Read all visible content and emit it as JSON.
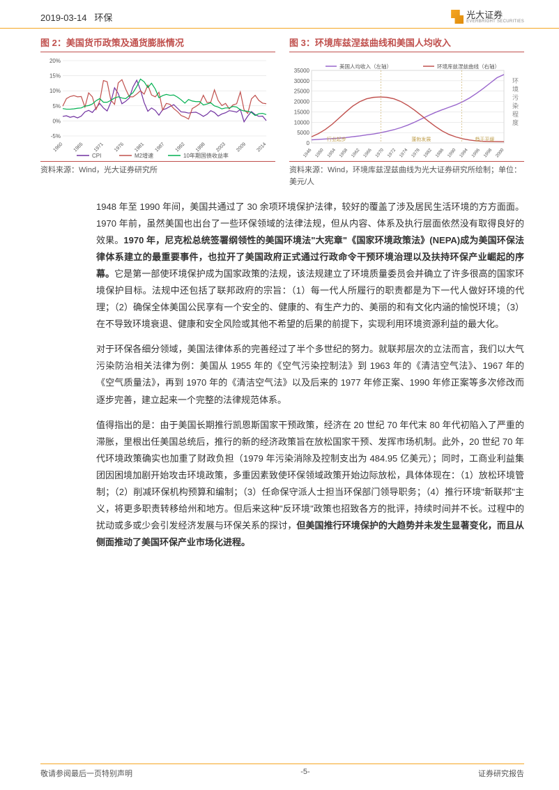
{
  "header": {
    "date": "2019-03-14",
    "category": "环保",
    "logo_cn": "光大证券",
    "logo_en": "EVERBRIGHT SECURITIES"
  },
  "chart2": {
    "title": "图 2：美国货币政策及通货膨胀情况",
    "type": "line",
    "source": "资料来源：Wind，光大证券研究所",
    "background_color": "#ffffff",
    "grid_color": "#d9d9d9",
    "ylim": [
      -5,
      20
    ],
    "ytick_step": 5,
    "ylabels": [
      "-5%",
      "0%",
      "5%",
      "10%",
      "15%",
      "20%"
    ],
    "xlabels": [
      "1960",
      "1965",
      "1971",
      "1976",
      "1981",
      "1987",
      "1992",
      "1998",
      "2003",
      "2009",
      "2014"
    ],
    "xlabel_fontsize": 7,
    "ylabel_fontsize": 8,
    "legend_fontsize": 8,
    "series": [
      {
        "name": "CPI",
        "color": "#7030a0",
        "line_width": 1.2,
        "values": [
          1.5,
          1.7,
          1.2,
          1.5,
          1.0,
          1.6,
          3.0,
          3.5,
          2.8,
          4.3,
          5.8,
          4.3,
          3.3,
          6.2,
          11.0,
          9.1,
          5.7,
          6.5,
          7.6,
          11.3,
          13.5,
          10.3,
          6.1,
          3.2,
          4.3,
          3.5,
          1.9,
          3.7,
          4.1,
          4.8,
          5.4,
          4.2,
          3.0,
          2.9,
          2.6,
          2.8,
          2.9,
          2.3,
          1.5,
          2.2,
          3.4,
          2.8,
          1.6,
          2.3,
          2.7,
          3.4,
          3.2,
          2.9,
          3.8,
          -0.3,
          1.6,
          3.1,
          2.1,
          1.5,
          1.6,
          0.1
        ]
      },
      {
        "name": "M2增速",
        "color": "#c0504d",
        "line_width": 1.2,
        "values": [
          4.9,
          7.4,
          8.1,
          8.4,
          8.0,
          8.1,
          4.6,
          9.3,
          8.0,
          3.8,
          6.6,
          13.4,
          13.0,
          6.9,
          5.5,
          12.6,
          13.7,
          10.6,
          8.0,
          8.0,
          8.9,
          10.0,
          8.9,
          11.9,
          8.6,
          8.0,
          9.5,
          3.6,
          5.8,
          5.5,
          4.1,
          3.1,
          1.8,
          1.3,
          0.6,
          4.1,
          4.8,
          5.7,
          8.5,
          6.1,
          6.2,
          10.3,
          6.8,
          5.1,
          5.8,
          4.0,
          5.3,
          5.7,
          9.6,
          3.7,
          2.5,
          7.3,
          8.5,
          6.8,
          5.9,
          5.7
        ]
      },
      {
        "name": "10年期国债收益率",
        "color": "#00b050",
        "line_width": 1.2,
        "values": [
          4.1,
          3.9,
          3.9,
          4.0,
          4.2,
          4.3,
          4.9,
          5.1,
          5.6,
          6.7,
          7.4,
          6.2,
          6.2,
          6.8,
          7.6,
          8.0,
          7.6,
          7.4,
          8.4,
          9.4,
          11.4,
          13.9,
          13.0,
          11.1,
          12.5,
          10.6,
          7.7,
          8.4,
          8.8,
          8.5,
          8.6,
          7.9,
          7.0,
          5.9,
          7.1,
          6.6,
          6.4,
          6.4,
          5.3,
          5.6,
          6.0,
          5.0,
          4.6,
          4.0,
          4.3,
          4.3,
          4.8,
          4.6,
          3.7,
          3.3,
          3.2,
          2.8,
          1.8,
          2.4,
          2.5,
          2.1
        ]
      }
    ]
  },
  "chart3": {
    "title": "图 3：环境库兹涅兹曲线和美国人均收入",
    "type": "line",
    "source": "资料来源：Wind，环境库兹涅兹曲线为光大证券研究所绘制；单位：美元/人",
    "background_color": "#ffffff",
    "grid_color": "#d9d9d9",
    "ylim": [
      0,
      35000
    ],
    "ytick_step": 5000,
    "ylabels": [
      "0",
      "5000",
      "10000",
      "15000",
      "20000",
      "25000",
      "30000",
      "35000"
    ],
    "xlabels": [
      "1946",
      "1950",
      "1954",
      "1958",
      "1962",
      "1966",
      "1970",
      "1972",
      "1974",
      "1978",
      "1982",
      "1986",
      "1990",
      "1994",
      "1996",
      "1998",
      "2000"
    ],
    "xlabel_fontsize": 6.5,
    "ylabel_fontsize": 8,
    "right_axis_label": "环境污染程度",
    "phase_labels": [
      "行业起步",
      "蓬勃发展",
      "趋于平缓"
    ],
    "phase_color": "#c0a050",
    "phase_fontsize": 7,
    "series": [
      {
        "name": "美国人均收入（左轴）",
        "color": "#9966cc",
        "line_width": 1.4,
        "values": [
          1500,
          1700,
          1900,
          2100,
          2300,
          2600,
          3000,
          3400,
          3900,
          4300,
          4900,
          5600,
          6400,
          7400,
          8600,
          10000,
          11600,
          13200,
          14700,
          16000,
          17200,
          18400,
          19900,
          21700,
          23900,
          26300,
          28900,
          31500,
          33000
        ]
      },
      {
        "name": "环境库兹涅兹曲线（右轴）",
        "color": "#c0504d",
        "line_width": 1.4,
        "values": [
          3000,
          4500,
          6500,
          9000,
          12000,
          15000,
          17800,
          19900,
          21300,
          22000,
          22200,
          22000,
          21300,
          20000,
          18100,
          15800,
          13200,
          10500,
          8000,
          5800,
          4100,
          2900,
          2000,
          1400,
          1000,
          800,
          700,
          650,
          600
        ]
      }
    ]
  },
  "paragraphs": {
    "p1a": "1948 年至 1990 年间，美国共通过了 30 余项环境保护法律，较好的覆盖了涉及居民生活环境的方方面面。1970 年前，虽然美国也出台了一些环保领域的法律法规，但从内容、体系及执行层面依然没有取得良好的效果。",
    "p1b": "1970 年，尼克松总统签署纲领性的美国环境法\"大宪章\"《国家环境政策法》(NEPA)成为美国环保法律体系建立的最重要事件，也拉开了美国政府正式通过行政命令干预环境治理以及扶持环保产业崛起的序幕。",
    "p1c": "它是第一部使环境保护成为国家政策的法规，该法规建立了环境质量委员会并确立了许多很高的国家环境保护目标。法规中还包括了联邦政府的宗旨：（1）每一代人所履行的职责都是为下一代人做好环境的代理；（2）确保全体美国公民享有一个安全的、健康的、有生产力的、美丽的和有文化内涵的愉悦环境；（3）在不导致环境衰退、健康和安全风险或其他不希望的后果的前提下，实现利用环境资源利益的最大化。",
    "p2": "对于环保各细分领域，美国法律体系的完善经过了半个多世纪的努力。就联邦层次的立法而言，我们以大气污染防治相关法律为例：美国从 1955 年的《空气污染控制法》到 1963 年的《清洁空气法》、1967 年的《空气质量法》，再到 1970 年的《清洁空气法》以及后来的 1977 年修正案、1990 年修正案等多次修改而逐步完善，建立起来一个完整的法律规范体系。",
    "p3a": "值得指出的是：由于美国长期推行凯恩斯国家干预政策，经济在 20 世纪 70 年代末 80 年代初陷入了严重的滞胀，里根出任美国总统后，推行的新的经济政策旨在放松国家干预、发挥市场机制。此外，20 世纪 70 年代环境政策确实也加重了财政负担（1979 年污染消除及控制支出为 484.95 亿美元）；同时，工商业利益集团因困境加剧开始攻击环境政策，多重因素致使环保领域政策开始边际放松，具体体现在：（1）放松环境管制；（2）削减环保机构预算和编制；（3）任命保守派人士担当环保部门领导职务；（4）推行环境\"新联邦\"主义，将更多职责转移给州和地方。但后来这种\"反环境\"政策也招致各方的批评，持续时间并不长。过程中的扰动或多或少会引发经济发展与环保关系的探讨，",
    "p3b": "但美国推行环境保护的大趋势并未发生显著变化，而且从侧面推动了美国环保产业市场化进程。"
  },
  "footer": {
    "left": "敬请参阅最后一页特别声明",
    "center": "-5-",
    "right": "证券研究报告"
  }
}
